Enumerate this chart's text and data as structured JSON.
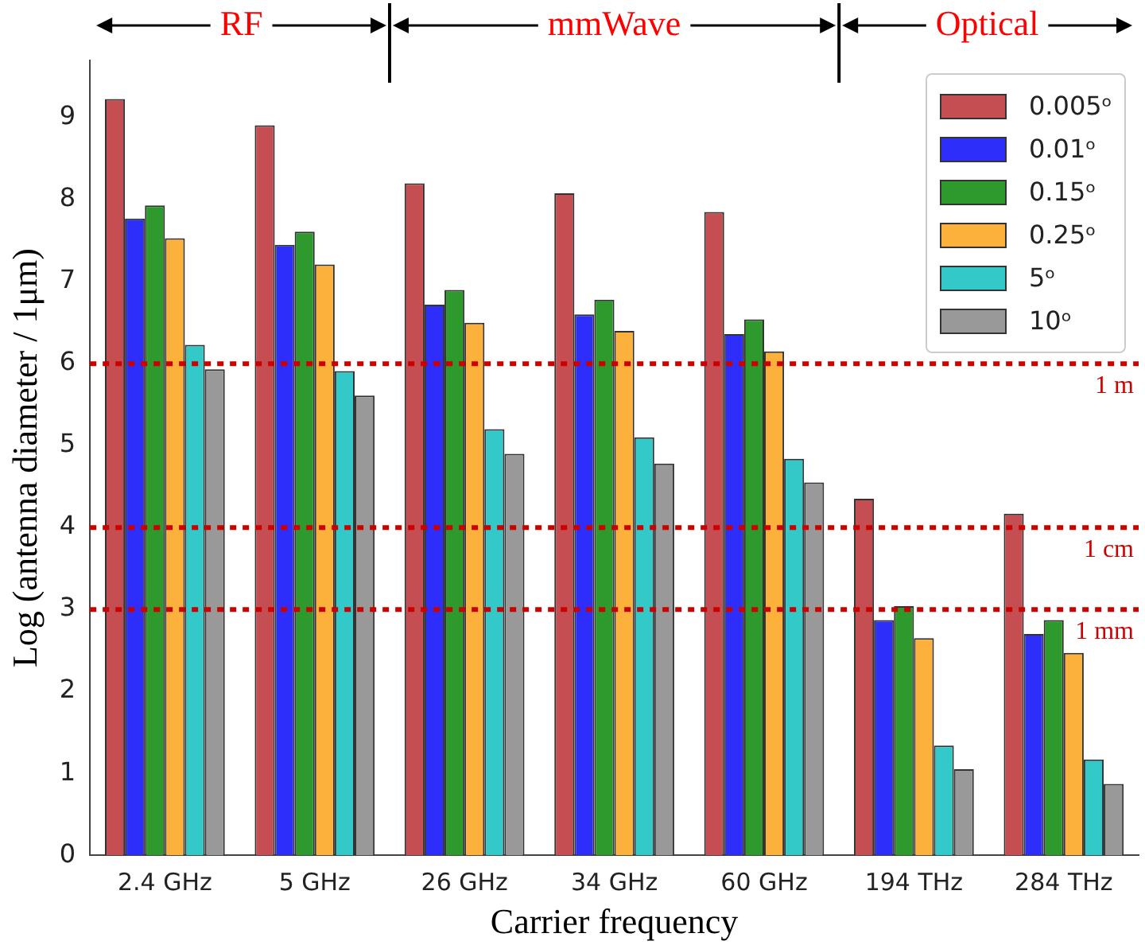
{
  "chart_data": {
    "type": "bar",
    "xlabel": "Carrier frequency",
    "ylabel": "Log (antenna diameter / 1μm)",
    "categories": [
      "2.4 GHz",
      "5 GHz",
      "26 GHz",
      "34 GHz",
      "60 GHz",
      "194 THz",
      "284 THz"
    ],
    "series": [
      {
        "name": "0.005ᵒ",
        "color": "#c44e52",
        "values": [
          9.23,
          8.91,
          8.2,
          8.08,
          7.85,
          4.35,
          4.17
        ]
      },
      {
        "name": "0.01ᵒ",
        "color": "#2e2efa",
        "values": [
          7.77,
          7.45,
          6.72,
          6.6,
          6.36,
          2.87,
          2.7
        ]
      },
      {
        "name": "0.15ᵒ",
        "color": "#2e9a2e",
        "values": [
          7.93,
          7.61,
          6.9,
          6.78,
          6.54,
          3.04,
          2.87
        ]
      },
      {
        "name": "0.25ᵒ",
        "color": "#fbb13c",
        "values": [
          7.53,
          7.21,
          6.5,
          6.4,
          6.15,
          2.65,
          2.47
        ]
      },
      {
        "name": "5ᵒ",
        "color": "#33c9c9",
        "values": [
          6.23,
          5.91,
          5.2,
          5.1,
          4.84,
          1.34,
          1.17
        ]
      },
      {
        "name": "10ᵒ",
        "color": "#999999",
        "values": [
          5.93,
          5.61,
          4.9,
          4.78,
          4.55,
          1.05,
          0.87
        ]
      }
    ],
    "ylim": [
      0,
      9.7
    ],
    "yticks": [
      0,
      1,
      2,
      3,
      4,
      5,
      6,
      7,
      8,
      9
    ],
    "grid": false,
    "legend": "top right",
    "ref_lines": [
      {
        "axis": "y",
        "value": 6,
        "label": "1 m",
        "color": "#cc0000",
        "line_style": "dotted"
      },
      {
        "axis": "y",
        "value": 4,
        "label": "1 cm",
        "color": "#cc0000",
        "line_style": "dotted"
      },
      {
        "axis": "y",
        "value": 3,
        "label": "1 mm",
        "color": "#cc0000",
        "line_style": "dotted"
      }
    ],
    "annotations": [
      "RF",
      "mmWave",
      "Optical"
    ]
  }
}
